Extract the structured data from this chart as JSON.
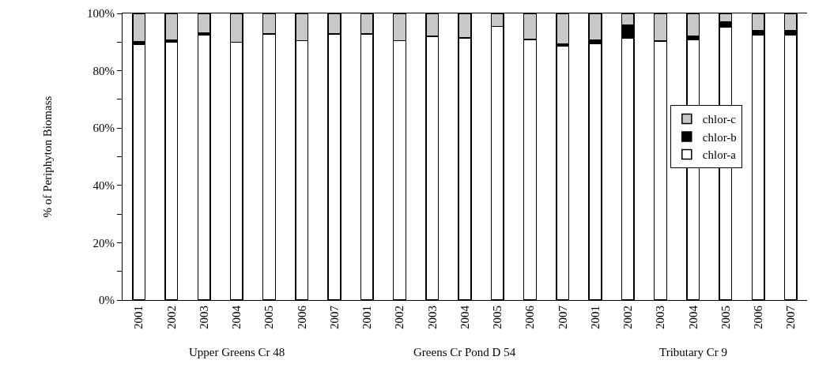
{
  "chart_data": {
    "type": "bar",
    "stacked": true,
    "ylabel": "% of Periphyton Biomass",
    "categories": [
      "2001",
      "2002",
      "2003",
      "2004",
      "2005",
      "2006",
      "2007",
      "2001",
      "2002",
      "2003",
      "2004",
      "2005",
      "2006",
      "2007",
      "2001",
      "2002",
      "2003",
      "2004",
      "2005",
      "2006",
      "2007"
    ],
    "series": [
      {
        "name": "chlor-a",
        "color": "#ffffff",
        "values": [
          89.1,
          90.0,
          92.4,
          90.0,
          92.9,
          90.5,
          92.9,
          92.9,
          90.5,
          92.0,
          91.5,
          95.4,
          90.9,
          88.6,
          89.4,
          91.4,
          90.4,
          90.9,
          95.2,
          92.5,
          92.5
        ]
      },
      {
        "name": "chlor-b",
        "color": "#000000",
        "values": [
          1.1,
          0.7,
          0.7,
          0,
          0,
          0,
          0,
          0,
          0,
          0,
          0,
          0,
          0,
          0.7,
          1.3,
          4.5,
          0,
          1.3,
          1.9,
          1.5,
          1.5
        ]
      },
      {
        "name": "chlor-c",
        "color": "#c8c8c8",
        "values": [
          9.8,
          9.3,
          6.9,
          10.0,
          7.1,
          9.5,
          7.1,
          7.1,
          9.5,
          8.0,
          8.5,
          4.6,
          9.1,
          10.7,
          9.3,
          4.1,
          9.6,
          7.8,
          2.9,
          6.0,
          6.0
        ]
      }
    ],
    "ylim": [
      0,
      100
    ],
    "yticks": [
      {
        "value": 0,
        "label": "0%"
      },
      {
        "value": 10,
        "label": null
      },
      {
        "value": 20,
        "label": "20%"
      },
      {
        "value": 30,
        "label": null
      },
      {
        "value": 40,
        "label": "40%"
      },
      {
        "value": 50,
        "label": null
      },
      {
        "value": 60,
        "label": "60%"
      },
      {
        "value": 70,
        "label": null
      },
      {
        "value": 80,
        "label": "80%"
      },
      {
        "value": 90,
        "label": null
      },
      {
        "value": 100,
        "label": "100%"
      }
    ],
    "annotations": [
      "Upper Greens Cr 48",
      "Greens Cr Pond D 54",
      "Tributary Cr 9"
    ],
    "grid": false,
    "legend": "right"
  }
}
